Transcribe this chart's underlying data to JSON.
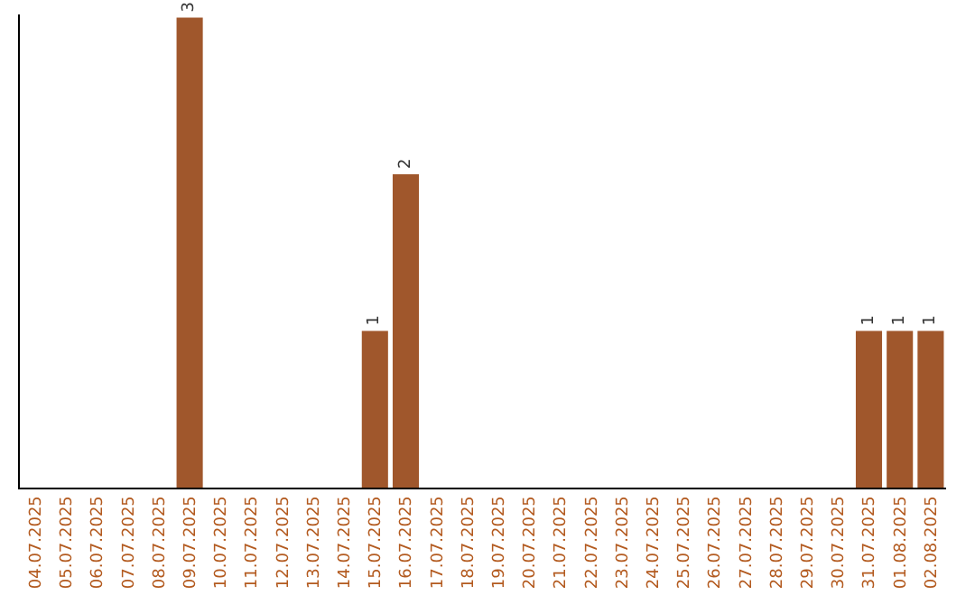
{
  "chart_data": {
    "type": "bar",
    "categories": [
      "04.07.2025",
      "05.07.2025",
      "06.07.2025",
      "07.07.2025",
      "08.07.2025",
      "09.07.2025",
      "10.07.2025",
      "11.07.2025",
      "12.07.2025",
      "13.07.2025",
      "14.07.2025",
      "15.07.2025",
      "16.07.2025",
      "17.07.2025",
      "18.07.2025",
      "19.07.2025",
      "20.07.2025",
      "21.07.2025",
      "22.07.2025",
      "23.07.2025",
      "24.07.2025",
      "25.07.2025",
      "26.07.2025",
      "27.07.2025",
      "28.07.2025",
      "29.07.2025",
      "30.07.2025",
      "31.07.2025",
      "01.08.2025",
      "02.08.2025"
    ],
    "values": [
      0,
      0,
      0,
      0,
      0,
      3,
      0,
      0,
      0,
      0,
      0,
      1,
      2,
      0,
      0,
      0,
      0,
      0,
      0,
      0,
      0,
      0,
      0,
      0,
      0,
      0,
      0,
      1,
      1,
      1
    ],
    "value_labels": [
      null,
      null,
      null,
      null,
      null,
      "3",
      null,
      null,
      null,
      null,
      null,
      "1",
      "2",
      null,
      null,
      null,
      null,
      null,
      null,
      null,
      null,
      null,
      null,
      null,
      null,
      null,
      null,
      "1",
      "1",
      "1"
    ],
    "color": "#a0572c",
    "ylim": [
      0,
      3.02
    ],
    "tick_labels": "x",
    "legend": false
  }
}
